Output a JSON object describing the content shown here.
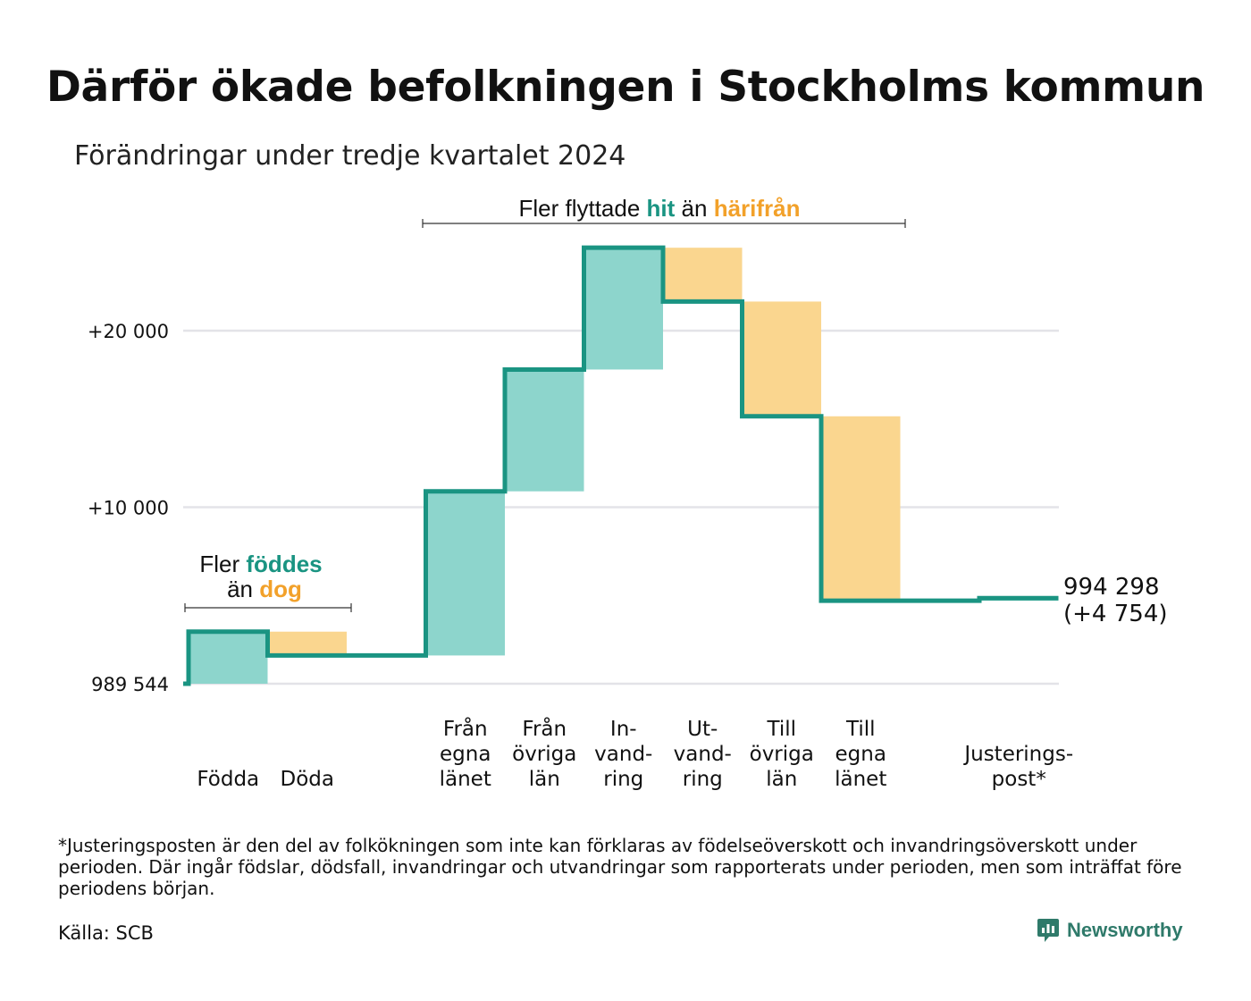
{
  "title": "Därför ökade befolkningen i Stockholms kommun",
  "subtitle": "Förändringar under tredje kvartalet 2024",
  "footnote": "*Justeringsposten är den del av folkökningen som inte kan förklaras av födelseöverskott och invandringsöverskott under perioden. Där ingår födslar, dödsfall, invandringar och utvandringar som rapporterats under perioden, men som inträffat före periodens början.",
  "source": "Källa: SCB",
  "brand": "Newsworthy",
  "colors": {
    "increase": "#8dd5cc",
    "decrease": "#fad68f",
    "line": "#1a9482",
    "teal_text": "#1a9482",
    "orange_text": "#f2a12a",
    "grid": "#e3e3e8"
  },
  "annotations": {
    "births": {
      "line1_prefix": "Fler",
      "line1_highlight": "föddes",
      "line2_prefix": "än",
      "line2_highlight": "dog"
    },
    "migration": {
      "prefix": "Fler flyttade",
      "hit": "hit",
      "middle": "än",
      "harifran": "härifrån"
    }
  },
  "chart_data": {
    "type": "waterfall",
    "title": "Därför ökade befolkningen i Stockholms kommun",
    "subtitle": "Förändringar under tredje kvartalet 2024",
    "start_value": 989544,
    "start_label": "989 544",
    "end_value": 994298,
    "end_labels": [
      "994 298",
      "(+4 754)"
    ],
    "yticks": [
      {
        "value": 0,
        "label": "989 544"
      },
      {
        "value": 10000,
        "label": "+10 000"
      },
      {
        "value": 20000,
        "label": "+20 000"
      }
    ],
    "ylim": [
      0,
      25500
    ],
    "grid": true,
    "steps": [
      {
        "name": "Födda",
        "label_lines": [
          "Födda"
        ],
        "delta": 2950
      },
      {
        "name": "Döda",
        "label_lines": [
          "Döda"
        ],
        "delta": -1350
      },
      {
        "name": "Från egna länet",
        "label_lines": [
          "Från",
          "egna",
          "länet"
        ],
        "delta": 9300,
        "gap_before": true
      },
      {
        "name": "Från övriga län",
        "label_lines": [
          "Från",
          "övriga",
          "län"
        ],
        "delta": 6900
      },
      {
        "name": "Invandring",
        "label_lines": [
          "In-",
          "vand-",
          "ring"
        ],
        "delta": 6900
      },
      {
        "name": "Utvandring",
        "label_lines": [
          "Ut-",
          "vand-",
          "ring"
        ],
        "delta": -3050
      },
      {
        "name": "Till övriga län",
        "label_lines": [
          "Till",
          "övriga",
          "län"
        ],
        "delta": -6500
      },
      {
        "name": "Till egna länet",
        "label_lines": [
          "Till",
          "egna",
          "länet"
        ],
        "delta": -10450
      },
      {
        "name": "Justeringspost*",
        "label_lines": [
          "Justerings-",
          "post*"
        ],
        "delta": 150,
        "gap_before": true
      }
    ]
  }
}
